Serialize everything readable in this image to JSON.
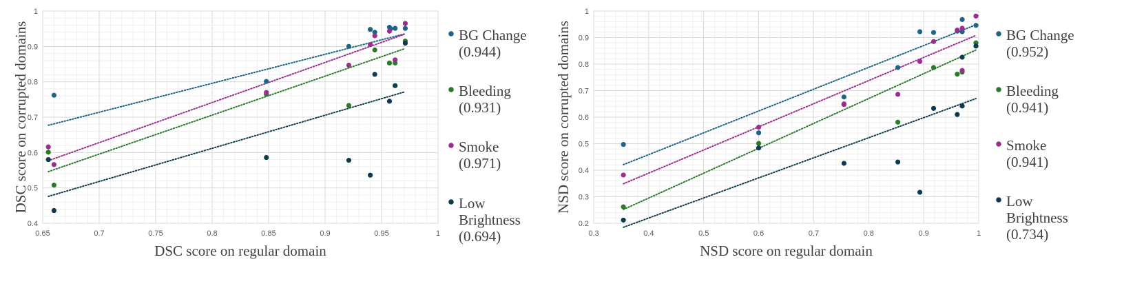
{
  "chart_data": [
    {
      "type": "scatter",
      "title": "",
      "xlabel": "DSC score on regular domain",
      "ylabel": "DSC score on corrupted domains",
      "xlim": [
        0.65,
        1.0
      ],
      "ylim": [
        0.4,
        1.0
      ],
      "xticks": [
        "0.65",
        "0.7",
        "0.75",
        "0.8",
        "0.85",
        "0.9",
        "0.95",
        "1"
      ],
      "yticks": [
        "0.4",
        "0.5",
        "0.6",
        "0.7",
        "0.8",
        "0.9",
        "1"
      ],
      "grid": true,
      "trendlines": "linear, dotted",
      "legend_position": "right",
      "series": [
        {
          "name": "BG Change",
          "corr": "(0.944)",
          "color": "#1c6586",
          "x": [
            0.66,
            0.848,
            0.921,
            0.94,
            0.944,
            0.957,
            0.958,
            0.962,
            0.971
          ],
          "y": [
            0.762,
            0.801,
            0.9,
            0.948,
            0.94,
            0.954,
            0.95,
            0.951,
            0.951
          ],
          "trend": [
            [
              0.655,
              0.677
            ],
            [
              0.97,
              0.935
            ]
          ]
        },
        {
          "name": "Bleeding",
          "corr": "(0.931)",
          "color": "#2b7a2b",
          "x": [
            0.655,
            0.66,
            0.848,
            0.921,
            0.944,
            0.957,
            0.962,
            0.971
          ],
          "y": [
            0.601,
            0.508,
            0.765,
            0.733,
            0.89,
            0.853,
            0.853,
            0.915
          ],
          "trend": [
            [
              0.655,
              0.546
            ],
            [
              0.97,
              0.893
            ]
          ]
        },
        {
          "name": "Smoke",
          "corr": "(0.971)",
          "color": "#9b2d8e",
          "x": [
            0.655,
            0.66,
            0.848,
            0.921,
            0.94,
            0.944,
            0.957,
            0.962,
            0.971
          ],
          "y": [
            0.616,
            0.566,
            0.77,
            0.847,
            0.905,
            0.93,
            0.943,
            0.862,
            0.965
          ],
          "trend": [
            [
              0.655,
              0.577
            ],
            [
              0.97,
              0.934
            ]
          ]
        },
        {
          "name": "Low Brightness",
          "corr": "(0.694)",
          "color": "#0f3a4e",
          "x": [
            0.655,
            0.66,
            0.848,
            0.921,
            0.94,
            0.944,
            0.957,
            0.962,
            0.971
          ],
          "y": [
            0.58,
            0.436,
            0.586,
            0.578,
            0.536,
            0.821,
            0.745,
            0.789,
            0.909
          ],
          "trend": [
            [
              0.655,
              0.476
            ],
            [
              0.97,
              0.771
            ]
          ]
        }
      ]
    },
    {
      "type": "scatter",
      "title": "",
      "xlabel": "NSD score on regular domain",
      "ylabel": "NSD score on corrupted domains",
      "xlim": [
        0.3,
        1.0
      ],
      "ylim": [
        0.2,
        1.0
      ],
      "xticks": [
        "0.3",
        "0.4",
        "0.5",
        "0.6",
        "0.7",
        "0.8",
        "0.9",
        "1"
      ],
      "yticks": [
        "0.2",
        "0.3",
        "0.4",
        "0.5",
        "0.6",
        "0.7",
        "0.8",
        "0.9",
        "1"
      ],
      "grid": true,
      "trendlines": "linear, dotted",
      "legend_position": "right",
      "series": [
        {
          "name": "BG Change",
          "corr": "(0.952)",
          "color": "#1c6586",
          "x": [
            0.354,
            0.6,
            0.755,
            0.853,
            0.893,
            0.918,
            0.961,
            0.97,
            0.97,
            0.995
          ],
          "y": [
            0.497,
            0.541,
            0.676,
            0.787,
            0.922,
            0.919,
            0.924,
            0.968,
            0.922,
            0.946
          ],
          "trend": [
            [
              0.354,
              0.421
            ],
            [
              0.995,
              0.948
            ]
          ]
        },
        {
          "name": "Bleeding",
          "corr": "(0.941)",
          "color": "#2b7a2b",
          "x": [
            0.354,
            0.6,
            0.755,
            0.853,
            0.918,
            0.961,
            0.97,
            0.995
          ],
          "y": [
            0.262,
            0.501,
            0.65,
            0.581,
            0.787,
            0.762,
            0.77,
            0.88
          ],
          "trend": [
            [
              0.354,
              0.252
            ],
            [
              0.995,
              0.853
            ]
          ]
        },
        {
          "name": "Smoke",
          "corr": "(0.941)",
          "color": "#9b2d8e",
          "x": [
            0.354,
            0.6,
            0.755,
            0.853,
            0.893,
            0.918,
            0.961,
            0.97,
            0.97,
            0.995
          ],
          "y": [
            0.382,
            0.562,
            0.648,
            0.686,
            0.81,
            0.885,
            0.928,
            0.935,
            0.776,
            0.981
          ],
          "trend": [
            [
              0.354,
              0.349
            ],
            [
              0.995,
              0.908
            ]
          ]
        },
        {
          "name": "Low Brightness",
          "corr": "(0.734)",
          "color": "#0f3a4e",
          "x": [
            0.354,
            0.6,
            0.755,
            0.853,
            0.893,
            0.918,
            0.961,
            0.97,
            0.97,
            0.995
          ],
          "y": [
            0.212,
            0.484,
            0.426,
            0.431,
            0.317,
            0.633,
            0.61,
            0.642,
            0.826,
            0.868
          ],
          "trend": [
            [
              0.354,
              0.185
            ],
            [
              0.995,
              0.67
            ]
          ]
        }
      ]
    }
  ]
}
